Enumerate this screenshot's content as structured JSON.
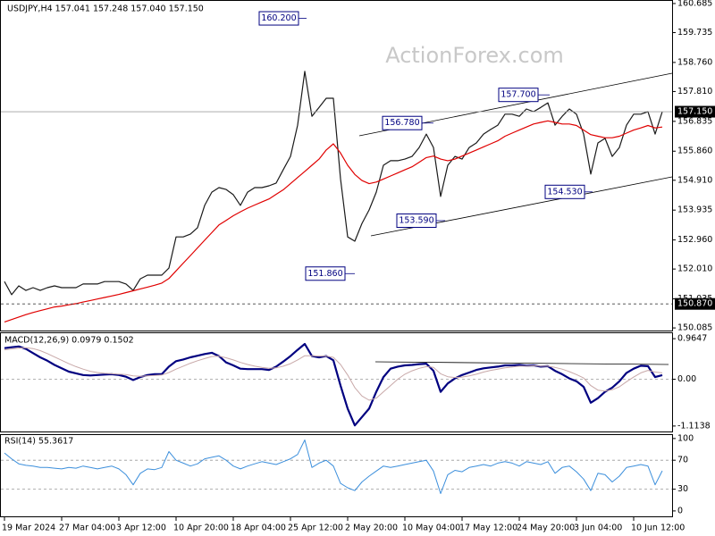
{
  "chart_data": [
    {
      "type": "line",
      "title": "USDJPY,H4  157.041 157.248 157.040 157.150",
      "watermark": "ActionForex.com",
      "series": [
        {
          "color": "#1a1a1a",
          "line_width": 1.2,
          "values": [
            151.6,
            151.17,
            151.46,
            151.31,
            151.4,
            151.31,
            151.4,
            151.46,
            151.4,
            151.4,
            151.4,
            151.52,
            151.52,
            151.52,
            151.6,
            151.6,
            151.6,
            151.52,
            151.31,
            151.69,
            151.81,
            151.81,
            151.81,
            152.04,
            153.06,
            153.06,
            153.15,
            153.36,
            154.09,
            154.52,
            154.67,
            154.61,
            154.44,
            154.09,
            154.52,
            154.67,
            154.67,
            154.73,
            154.82,
            155.26,
            155.69,
            156.71,
            158.47,
            157.0,
            157.29,
            157.59,
            157.59,
            154.96,
            153.06,
            152.92,
            153.5,
            153.94,
            154.52,
            155.4,
            155.55,
            155.55,
            155.6,
            155.69,
            155.98,
            156.42,
            155.98,
            154.38,
            155.4,
            155.69,
            155.6,
            155.98,
            156.13,
            156.42,
            156.57,
            156.71,
            157.07,
            157.07,
            157.0,
            157.24,
            157.15,
            157.29,
            157.44,
            156.71,
            157.0,
            157.24,
            157.07,
            156.42,
            155.11,
            156.13,
            156.28,
            155.69,
            155.98,
            156.71,
            157.07,
            157.07,
            157.15,
            156.42,
            157.15
          ]
        },
        {
          "color": "#e00000",
          "line_width": 1.2,
          "values": [
            150.28,
            150.36,
            150.44,
            150.52,
            150.59,
            150.65,
            150.71,
            150.77,
            150.8,
            150.84,
            150.88,
            150.93,
            150.98,
            151.03,
            151.08,
            151.13,
            151.18,
            151.24,
            151.3,
            151.36,
            151.42,
            151.48,
            151.55,
            151.7,
            151.95,
            152.2,
            152.45,
            152.7,
            152.95,
            153.2,
            153.45,
            153.6,
            153.75,
            153.88,
            154.0,
            154.1,
            154.2,
            154.3,
            154.45,
            154.6,
            154.8,
            155.0,
            155.2,
            155.4,
            155.6,
            155.9,
            156.1,
            155.8,
            155.4,
            155.1,
            154.9,
            154.8,
            154.85,
            154.95,
            155.05,
            155.15,
            155.25,
            155.35,
            155.5,
            155.65,
            155.7,
            155.6,
            155.55,
            155.6,
            155.7,
            155.8,
            155.9,
            156.0,
            156.1,
            156.2,
            156.35,
            156.45,
            156.55,
            156.65,
            156.75,
            156.8,
            156.85,
            156.8,
            156.75,
            156.75,
            156.7,
            156.55,
            156.4,
            156.35,
            156.3,
            156.3,
            156.35,
            156.45,
            156.55,
            156.62,
            156.7,
            156.62,
            156.65
          ]
        }
      ],
      "ylim": [
        150.0,
        160.8
      ],
      "yticks": [
        160.685,
        159.735,
        {
          "value": 158.76,
          "label": "158.760"
        },
        {
          "value": 157.81,
          "label": "157.810"
        },
        156.835,
        {
          "value": 155.86,
          "label": "155.860"
        },
        {
          "value": 154.91,
          "label": "154.910"
        },
        153.935,
        {
          "value": 152.96,
          "label": "152.960"
        },
        {
          "value": 152.01,
          "label": "152.010"
        },
        151.035,
        150.085
      ],
      "hlines": [
        {
          "value": 157.15,
          "label": "157.150",
          "color": "#a0a0a0",
          "dashed": false
        },
        {
          "value": 150.87,
          "label": "150.870",
          "color": "#404040",
          "dashed": true
        }
      ],
      "annotations": [
        {
          "value": 160.2,
          "label": "160.200"
        },
        {
          "value": 157.7,
          "label": "157.700"
        },
        {
          "value": 156.78,
          "label": "156.780"
        },
        {
          "value": 154.53,
          "label": "154.530"
        },
        {
          "value": 153.59,
          "label": "153.590"
        },
        {
          "value": 151.86,
          "label": "151.860"
        }
      ]
    },
    {
      "type": "line",
      "title": "MACD(12,26,9) 0.0979 0.1502",
      "series": [
        {
          "color": "#000080",
          "line_width": 2.2,
          "values": [
            0.74,
            0.76,
            0.78,
            0.72,
            0.62,
            0.52,
            0.44,
            0.34,
            0.26,
            0.18,
            0.14,
            0.1,
            0.09,
            0.1,
            0.11,
            0.12,
            0.1,
            0.06,
            -0.02,
            0.05,
            0.1,
            0.12,
            0.12,
            0.3,
            0.43,
            0.47,
            0.52,
            0.56,
            0.6,
            0.63,
            0.55,
            0.4,
            0.33,
            0.25,
            0.24,
            0.24,
            0.24,
            0.22,
            0.3,
            0.42,
            0.55,
            0.7,
            0.84,
            0.55,
            0.52,
            0.55,
            0.45,
            -0.15,
            -0.7,
            -1.1,
            -0.9,
            -0.7,
            -0.3,
            0.05,
            0.25,
            0.3,
            0.33,
            0.34,
            0.36,
            0.37,
            0.2,
            -0.3,
            -0.1,
            0.02,
            0.1,
            0.16,
            0.22,
            0.26,
            0.28,
            0.3,
            0.33,
            0.33,
            0.34,
            0.32,
            0.33,
            0.3,
            0.31,
            0.2,
            0.12,
            0.02,
            -0.05,
            -0.18,
            -0.56,
            -0.45,
            -0.3,
            -0.2,
            -0.05,
            0.15,
            0.25,
            0.32,
            0.31,
            0.05,
            0.098
          ]
        },
        {
          "color": "#c8a8a8",
          "line_width": 1,
          "values": [
            0.7,
            0.72,
            0.74,
            0.75,
            0.73,
            0.68,
            0.61,
            0.53,
            0.45,
            0.37,
            0.3,
            0.24,
            0.19,
            0.16,
            0.14,
            0.13,
            0.12,
            0.11,
            0.08,
            0.07,
            0.08,
            0.09,
            0.1,
            0.16,
            0.24,
            0.31,
            0.38,
            0.44,
            0.49,
            0.54,
            0.55,
            0.51,
            0.46,
            0.4,
            0.35,
            0.31,
            0.28,
            0.26,
            0.27,
            0.31,
            0.37,
            0.46,
            0.56,
            0.56,
            0.55,
            0.55,
            0.52,
            0.35,
            0.1,
            -0.2,
            -0.4,
            -0.5,
            -0.45,
            -0.3,
            -0.15,
            0.0,
            0.12,
            0.2,
            0.26,
            0.3,
            0.28,
            0.13,
            0.06,
            0.04,
            0.05,
            0.08,
            0.12,
            0.17,
            0.21,
            0.24,
            0.27,
            0.29,
            0.31,
            0.31,
            0.32,
            0.31,
            0.31,
            0.28,
            0.24,
            0.18,
            0.11,
            0.03,
            -0.15,
            -0.26,
            -0.28,
            -0.25,
            -0.18,
            -0.06,
            0.05,
            0.15,
            0.21,
            0.17,
            0.15
          ]
        }
      ],
      "ylim": [
        -1.265,
        1.116
      ],
      "yticks": [
        0.9647,
        {
          "value": 0,
          "label": "0.00"
        },
        -1.1138
      ],
      "levels": [
        0
      ]
    },
    {
      "type": "line",
      "title": "RSI(14) 55.3617",
      "categories": [
        "19 Mar 2024",
        null,
        null,
        null,
        null,
        null,
        null,
        null,
        "27 Mar 04:00",
        null,
        null,
        null,
        null,
        null,
        null,
        null,
        "3 Apr 12:00",
        null,
        null,
        null,
        null,
        null,
        null,
        null,
        "10 Apr 20:00",
        null,
        null,
        null,
        null,
        null,
        null,
        null,
        "18 Apr 04:00",
        null,
        null,
        null,
        null,
        null,
        null,
        null,
        "25 Apr 12:00",
        null,
        null,
        null,
        null,
        null,
        null,
        null,
        "2 May 20:00",
        null,
        null,
        null,
        null,
        null,
        null,
        null,
        "10 May 04:00",
        null,
        null,
        null,
        null,
        null,
        null,
        null,
        "17 May 12:00",
        null,
        null,
        null,
        null,
        null,
        null,
        null,
        "24 May 20:00",
        null,
        null,
        null,
        null,
        null,
        null,
        null,
        "3 Jun 04:00",
        null,
        null,
        null,
        null,
        null,
        null,
        null,
        "10 Jun 12:00",
        null,
        null,
        null,
        null
      ],
      "series": [
        {
          "color": "#3c8fdc",
          "line_width": 1,
          "values": [
            80,
            72,
            65,
            63,
            62,
            60,
            60,
            59,
            58,
            60,
            59,
            62,
            60,
            58,
            60,
            62,
            58,
            50,
            36,
            52,
            58,
            57,
            60,
            82,
            70,
            66,
            62,
            65,
            72,
            74,
            76,
            70,
            62,
            58,
            62,
            65,
            68,
            66,
            64,
            68,
            72,
            78,
            98,
            60,
            66,
            70,
            62,
            38,
            32,
            28,
            40,
            48,
            55,
            62,
            60,
            62,
            64,
            66,
            68,
            70,
            55,
            24,
            50,
            56,
            54,
            60,
            62,
            64,
            62,
            66,
            68,
            66,
            62,
            68,
            66,
            64,
            68,
            52,
            60,
            62,
            54,
            44,
            28,
            52,
            50,
            40,
            48,
            60,
            62,
            64,
            62,
            36,
            55.36
          ]
        }
      ],
      "ylim": [
        -7.5,
        106
      ],
      "yticks": [
        100,
        70,
        30,
        0
      ],
      "levels": [
        70,
        30
      ]
    }
  ]
}
